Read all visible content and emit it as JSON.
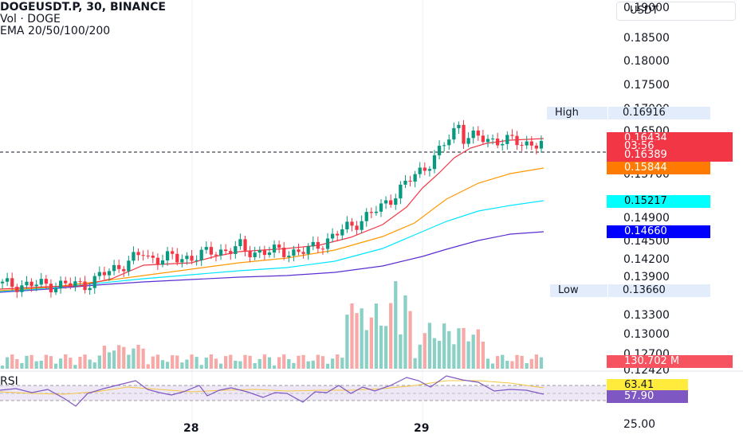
{
  "legend": {
    "title": "DOGEUSDT.P, 30, BINANCE",
    "volume": "Vol · DOGE",
    "ema": "EMA 20/50/100/200"
  },
  "currency": "USDT",
  "price_axis": [
    "0.19000",
    "0.18500",
    "0.18000",
    "0.17500",
    "0.17000",
    "0.16500",
    "0.16000",
    "0.15700",
    "0.15300",
    "0.14900",
    "0.14500",
    "0.14200",
    "0.13900",
    "0.13600",
    "0.13300",
    "0.13000",
    "0.12700",
    "0.12420"
  ],
  "tags": {
    "high_label": "High",
    "high_value": "0.16916",
    "current_price": "0.16434",
    "countdown": "03:56",
    "ema20": "0.16389",
    "ema50": "0.15844",
    "ema100": "0.15217",
    "ema200": "0.14660",
    "low_label": "Low",
    "low_value": "0.13660",
    "volume_value": "130.702 M"
  },
  "rsi": {
    "label": "RSI",
    "value": "63.41",
    "ma_value": "57.90",
    "bottom_tick": "25.00"
  },
  "time_axis": [
    "28",
    "29"
  ],
  "colors": {
    "up": "#089981",
    "down": "#f23645",
    "vol_up": "#8ad0c5",
    "vol_down": "#f7a9a7",
    "ema20": "#f23645",
    "ema50": "#ff9800",
    "ema100": "#00e5ff",
    "ema200": "#5b2ed0",
    "rsi_line": "#7e57c2",
    "rsi_ma": "#f5c542"
  }
}
